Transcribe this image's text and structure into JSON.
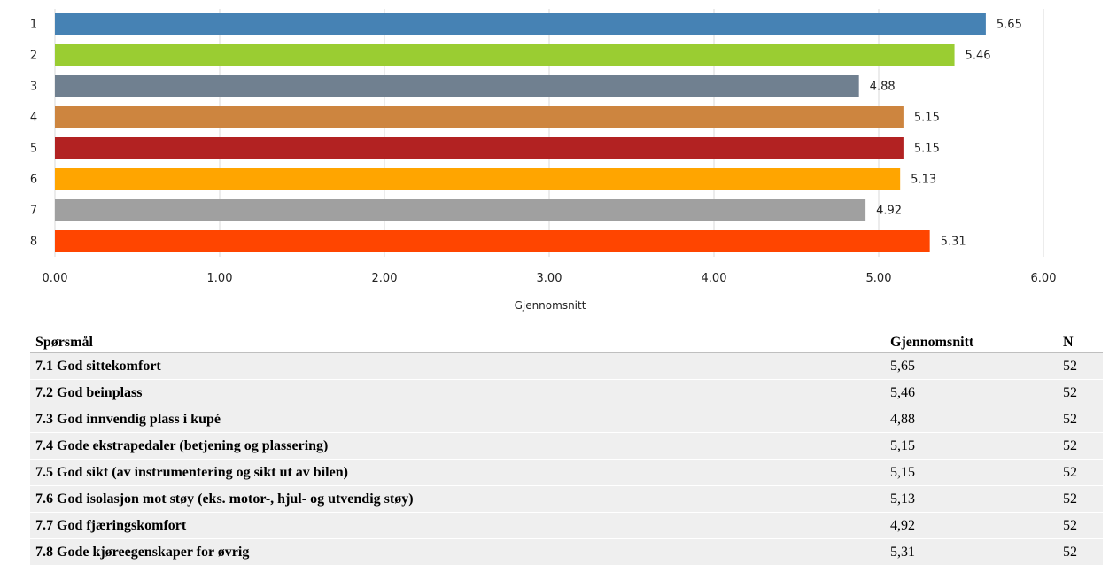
{
  "chart_data": {
    "type": "bar",
    "orientation": "horizontal",
    "categories": [
      "1",
      "2",
      "3",
      "4",
      "5",
      "6",
      "7",
      "8"
    ],
    "values": [
      5.65,
      5.46,
      4.88,
      5.15,
      5.15,
      5.13,
      4.92,
      5.31
    ],
    "value_labels": [
      "5.65",
      "5.46",
      "4.88",
      "5.15",
      "5.15",
      "5.13",
      "4.92",
      "5.31"
    ],
    "colors": [
      "#4682b4",
      "#9acd32",
      "#708090",
      "#cd853f",
      "#b22222",
      "#ffa500",
      "#a0a0a0",
      "#ff4500"
    ],
    "xlabel": "Gjennomsnitt",
    "xlim": [
      0,
      6
    ],
    "xticks": [
      "0.00",
      "1.00",
      "2.00",
      "3.00",
      "4.00",
      "5.00",
      "6.00"
    ],
    "grid": true
  },
  "table": {
    "headers": [
      "Spørsmål",
      "Gjennomsnitt",
      "N"
    ],
    "rows": [
      [
        "7.1 God sittekomfort",
        "5,65",
        "52"
      ],
      [
        "7.2 God beinplass",
        "5,46",
        "52"
      ],
      [
        "7.3 God innvendig plass i kupé",
        "4,88",
        "52"
      ],
      [
        "7.4 Gode ekstrapedaler (betjening og plassering)",
        "5,15",
        "52"
      ],
      [
        "7.5 God sikt (av instrumentering og sikt ut av bilen)",
        "5,15",
        "52"
      ],
      [
        "7.6 God isolasjon mot støy (eks. motor-, hjul- og utvendig støy)",
        "5,13",
        "52"
      ],
      [
        "7.7 God fjæringskomfort",
        "4,92",
        "52"
      ],
      [
        "7.8 Gode kjøreegenskaper for øvrig",
        "5,31",
        "52"
      ]
    ]
  }
}
